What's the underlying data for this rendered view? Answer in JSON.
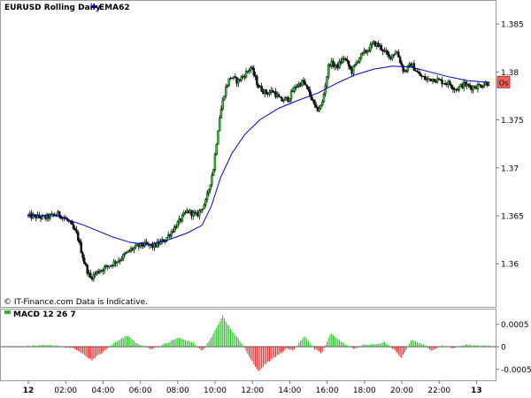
{
  "chart_data": [
    {
      "type": "candlestick",
      "title": "EURUSD Rolling Daily",
      "legend": [
        {
          "name": "EMA62",
          "color": "#0000cc"
        }
      ],
      "note": "© IT-Finance.com Data is Indicative.",
      "price_tag": "Os",
      "ylim": [
        1.3555,
        1.3875
      ],
      "yticks": [
        1.36,
        1.365,
        1.37,
        1.375,
        1.38,
        1.385
      ],
      "ytick_labels": [
        "1.36",
        "1.365",
        "1.37",
        "1.375",
        "1.38",
        "1.385"
      ],
      "xlim": [
        0,
        26.3
      ],
      "xticks": [
        0,
        2,
        4,
        6,
        8,
        10,
        12,
        14,
        16,
        18,
        20,
        22,
        24
      ],
      "xtick_labels": [
        "12",
        "02:00",
        "04:00",
        "06:00",
        "08:00",
        "10:00",
        "12:00",
        "14:00",
        "16:00",
        "18:00",
        "20:00",
        "22:00",
        "13"
      ],
      "close_path": [
        [
          0,
          1.365
        ],
        [
          1.0,
          1.3648
        ],
        [
          1.7,
          1.3652
        ],
        [
          2.2,
          1.3645
        ],
        [
          2.7,
          1.363
        ],
        [
          3.1,
          1.36
        ],
        [
          3.4,
          1.3585
        ],
        [
          3.8,
          1.3592
        ],
        [
          4.4,
          1.3598
        ],
        [
          5.0,
          1.3605
        ],
        [
          5.6,
          1.3615
        ],
        [
          6.2,
          1.362
        ],
        [
          6.8,
          1.3618
        ],
        [
          7.4,
          1.3625
        ],
        [
          8.0,
          1.364
        ],
        [
          8.6,
          1.3655
        ],
        [
          9.1,
          1.365
        ],
        [
          9.6,
          1.3665
        ],
        [
          10.0,
          1.37
        ],
        [
          10.3,
          1.375
        ],
        [
          10.6,
          1.378
        ],
        [
          10.9,
          1.3795
        ],
        [
          11.3,
          1.379
        ],
        [
          11.7,
          1.3798
        ],
        [
          12.0,
          1.3805
        ],
        [
          12.4,
          1.3785
        ],
        [
          12.8,
          1.3778
        ],
        [
          13.2,
          1.378
        ],
        [
          13.6,
          1.377
        ],
        [
          14.0,
          1.3772
        ],
        [
          14.4,
          1.3785
        ],
        [
          14.8,
          1.379
        ],
        [
          15.2,
          1.3775
        ],
        [
          15.5,
          1.376
        ],
        [
          15.8,
          1.3765
        ],
        [
          16.2,
          1.381
        ],
        [
          16.6,
          1.3805
        ],
        [
          17.0,
          1.3815
        ],
        [
          17.4,
          1.38
        ],
        [
          17.8,
          1.3815
        ],
        [
          18.2,
          1.3822
        ],
        [
          18.6,
          1.383
        ],
        [
          19.0,
          1.3825
        ],
        [
          19.4,
          1.3815
        ],
        [
          19.8,
          1.3822
        ],
        [
          20.2,
          1.38
        ],
        [
          20.6,
          1.3808
        ],
        [
          21.0,
          1.3797
        ],
        [
          21.4,
          1.3792
        ],
        [
          21.8,
          1.3793
        ],
        [
          22.2,
          1.379
        ],
        [
          22.6,
          1.3788
        ],
        [
          23.0,
          1.3782
        ],
        [
          23.4,
          1.3787
        ],
        [
          23.8,
          1.3784
        ],
        [
          24.3,
          1.3786
        ],
        [
          24.7,
          1.3789
        ]
      ],
      "series": [
        {
          "name": "EMA62",
          "color": "#0000cc",
          "points": [
            [
              0,
              1.365
            ],
            [
              1.5,
              1.365
            ],
            [
              3.0,
              1.364
            ],
            [
              4.5,
              1.3628
            ],
            [
              5.5,
              1.3622
            ],
            [
              6.5,
              1.362
            ],
            [
              7.5,
              1.3625
            ],
            [
              8.5,
              1.3632
            ],
            [
              9.3,
              1.364
            ],
            [
              9.8,
              1.366
            ],
            [
              10.3,
              1.369
            ],
            [
              10.9,
              1.3715
            ],
            [
              11.6,
              1.3735
            ],
            [
              12.4,
              1.375
            ],
            [
              13.4,
              1.3762
            ],
            [
              14.4,
              1.377
            ],
            [
              15.5,
              1.3778
            ],
            [
              16.5,
              1.3788
            ],
            [
              17.5,
              1.3797
            ],
            [
              18.5,
              1.3803
            ],
            [
              19.5,
              1.3806
            ],
            [
              20.5,
              1.3805
            ],
            [
              21.5,
              1.38
            ],
            [
              22.5,
              1.3795
            ],
            [
              23.5,
              1.3791
            ],
            [
              24.7,
              1.3789
            ]
          ]
        }
      ]
    },
    {
      "type": "bar",
      "title": "MACD 12 26 7",
      "ylim": [
        -0.00075,
        0.00085
      ],
      "yticks": [
        0.0005,
        0,
        -0.0005
      ],
      "ytick_labels": [
        "0.0005",
        "0",
        "-0.0005"
      ],
      "xlim": [
        0,
        26.3
      ],
      "positive_color": "#22bb22",
      "negative_color": "#dd2222",
      "macd_path": [
        [
          0,
          2e-05
        ],
        [
          1.5,
          3e-05
        ],
        [
          2.5,
          -5e-05
        ],
        [
          3.4,
          -0.0003
        ],
        [
          4.0,
          -0.00012
        ],
        [
          4.7,
          0.00012
        ],
        [
          5.3,
          0.00025
        ],
        [
          5.9,
          5e-05
        ],
        [
          6.6,
          -5e-05
        ],
        [
          7.4,
          8e-05
        ],
        [
          8.0,
          0.0002
        ],
        [
          8.8,
          0.0001
        ],
        [
          9.3,
          -0.0001
        ],
        [
          9.8,
          0.0002
        ],
        [
          10.4,
          0.0007
        ],
        [
          10.9,
          0.00035
        ],
        [
          11.4,
          0.0001
        ],
        [
          11.8,
          -0.0002
        ],
        [
          12.3,
          -0.00055
        ],
        [
          12.8,
          -0.00035
        ],
        [
          13.3,
          -0.0002
        ],
        [
          13.8,
          -5e-05
        ],
        [
          14.2,
          -8e-05
        ],
        [
          14.8,
          0.00025
        ],
        [
          15.3,
          -5e-05
        ],
        [
          15.7,
          -0.00015
        ],
        [
          16.2,
          0.0003
        ],
        [
          16.8,
          0.0001
        ],
        [
          17.4,
          -5e-05
        ],
        [
          18.0,
          5e-05
        ],
        [
          18.5,
          5e-05
        ],
        [
          19.1,
          0.0001
        ],
        [
          19.6,
          -8e-05
        ],
        [
          20.0,
          -0.00025
        ],
        [
          20.5,
          0.00015
        ],
        [
          21.0,
          8e-05
        ],
        [
          21.6,
          -8e-05
        ],
        [
          22.1,
          3e-05
        ],
        [
          22.8,
          -3e-05
        ],
        [
          23.4,
          5e-05
        ],
        [
          24.0,
          3e-05
        ],
        [
          24.7,
          2e-05
        ]
      ]
    }
  ]
}
